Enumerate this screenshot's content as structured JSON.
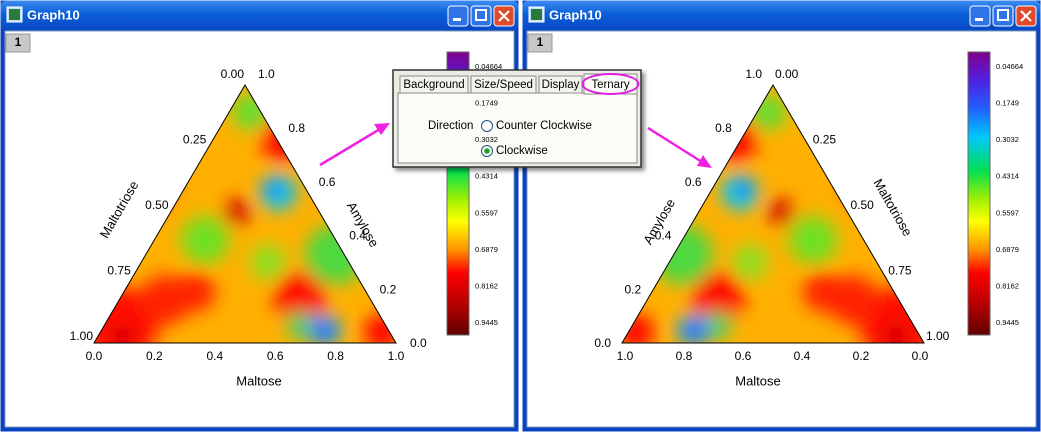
{
  "windows": [
    {
      "title": "Graph10",
      "page": "1",
      "axes": {
        "bottom": {
          "title": "Maltose",
          "ticks": [
            "0.0",
            "0.2",
            "0.4",
            "0.6",
            "0.8",
            "1.0"
          ]
        },
        "left": {
          "title": "Maltotriose",
          "ticks": [
            "0.00",
            "0.25",
            "0.50",
            "0.75",
            "1.00"
          ]
        },
        "right": {
          "title": "Amylose",
          "ticks": [
            "1.0",
            "0.8",
            "0.6",
            "0.4",
            "0.2",
            "0.0"
          ]
        }
      },
      "colorbar": [
        "0.04664",
        "0.1749",
        "0.3032",
        "0.4314",
        "0.5597",
        "0.6879",
        "0.8162",
        "0.9445"
      ]
    },
    {
      "title": "Graph10",
      "page": "1",
      "axes": {
        "bottom": {
          "title": "Maltose",
          "ticks": [
            "1.0",
            "0.8",
            "0.6",
            "0.4",
            "0.2",
            "0.0"
          ]
        },
        "left": {
          "title": "Amylose",
          "ticks": [
            "0.0",
            "0.2",
            "0.4",
            "0.6",
            "0.8",
            "1.0"
          ]
        },
        "right": {
          "title": "Maltotriose",
          "ticks": [
            "0.00",
            "0.25",
            "0.50",
            "0.75",
            "1.00"
          ]
        }
      },
      "colorbar": [
        "0.04664",
        "0.1749",
        "0.3032",
        "0.4314",
        "0.5597",
        "0.6879",
        "0.8162",
        "0.9445"
      ]
    }
  ],
  "dialog": {
    "tabs": [
      "Background",
      "Size/Speed",
      "Display",
      "Ternary"
    ],
    "direction_label": "Direction",
    "options": [
      "Counter Clockwise",
      "Clockwise"
    ]
  }
}
